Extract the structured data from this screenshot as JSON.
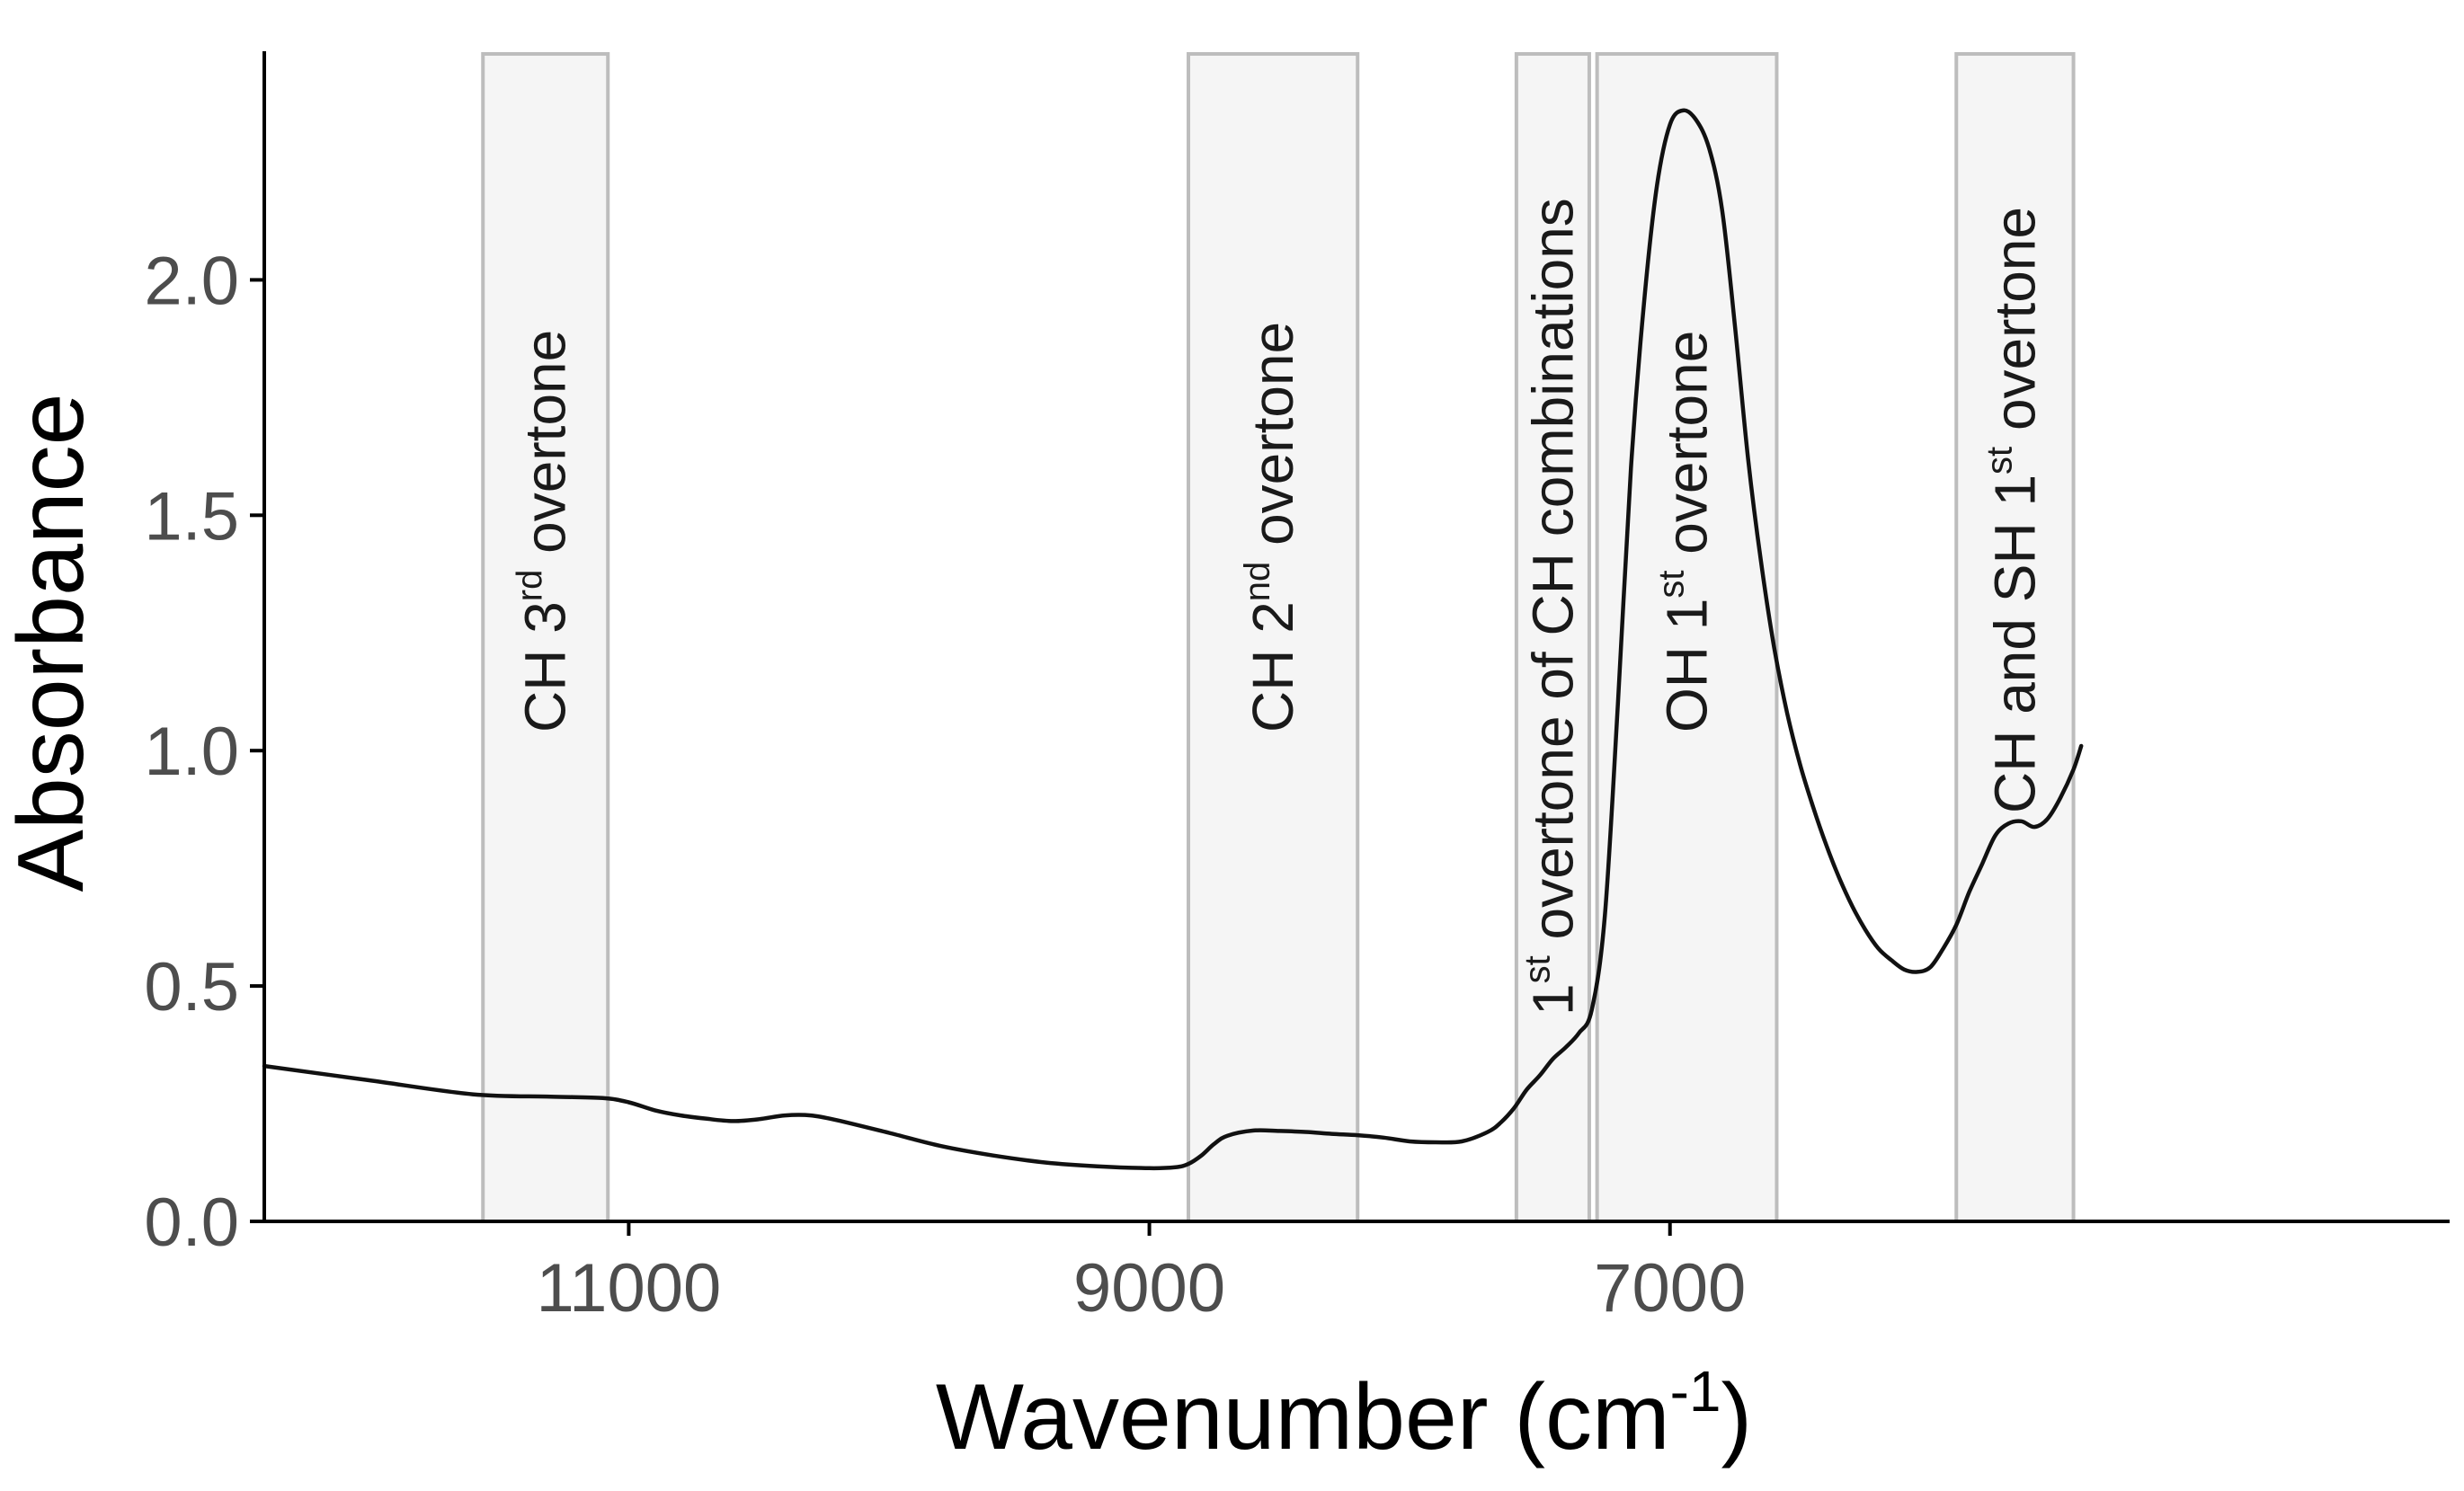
{
  "chart_data": {
    "type": "line",
    "title": "",
    "xlabel": "Wavenumber (cm",
    "xlabel_sup": "-1",
    "xlabel_close": ")",
    "ylabel": "Absorbance",
    "x_reversed": true,
    "xlim": [
      12400,
      4005
    ],
    "ylim": [
      0,
      2.48
    ],
    "grid": false,
    "legend": "none",
    "x_ticks": [
      11000,
      9000,
      7000
    ],
    "x_tick_labels": [
      "11000",
      "9000",
      "7000"
    ],
    "y_ticks": [
      0,
      0.5,
      1,
      1.5,
      2
    ],
    "y_tick_labels": [
      "0.0",
      "0.5",
      "1.0",
      "1.5",
      "2.0"
    ],
    "colors": {
      "line": "#111111",
      "band_fill": "#f5f5f5",
      "band_stroke": "#bdbdbd",
      "axis": "#000000",
      "tick_text": "#4d4d4d"
    },
    "bands": [
      {
        "from": 11560,
        "to": 11080,
        "label_parts": [
          {
            "t": "CH 3"
          },
          {
            "t": "rd",
            "sup": true
          },
          {
            "t": " overtone"
          }
        ]
      },
      {
        "from": 8850,
        "to": 8200,
        "label_parts": [
          {
            "t": "CH 2"
          },
          {
            "t": "nd",
            "sup": true
          },
          {
            "t": " overtone"
          }
        ]
      },
      {
        "from": 7590,
        "to": 7310,
        "label_parts": [
          {
            "t": "1"
          },
          {
            "t": "st",
            "sup": true
          },
          {
            "t": " overtone of CH combinations"
          }
        ]
      },
      {
        "from": 7280,
        "to": 6590,
        "label_parts": [
          {
            "t": "OH 1"
          },
          {
            "t": "st",
            "sup": true
          },
          {
            "t": " overtone"
          }
        ]
      },
      {
        "from": 5900,
        "to": 5450,
        "label_parts": [
          {
            "t": "CH and SH 1"
          },
          {
            "t": "st",
            "sup": true
          },
          {
            "t": " overtone"
          }
        ]
      }
    ],
    "series": [
      {
        "x": [
          12400,
          12000,
          11600,
          11300,
          11100,
          11000,
          10900,
          10800,
          10700,
          10600,
          10500,
          10400,
          10300,
          10200,
          10000,
          9800,
          9600,
          9400,
          9200,
          9000,
          8900,
          8850,
          8800,
          8750,
          8700,
          8600,
          8500,
          8400,
          8300,
          8200,
          8100,
          8000,
          7900,
          7800,
          7700,
          7650,
          7600,
          7550,
          7500,
          7450,
          7400,
          7350,
          7300,
          7250,
          7200,
          7150,
          7100,
          7050,
          7000,
          6950,
          6900,
          6850,
          6800,
          6750,
          6700,
          6650,
          6600,
          6550,
          6500,
          6450,
          6400,
          6350,
          6300,
          6250,
          6200,
          6150,
          6100,
          6050,
          6000,
          5950,
          5900,
          5850,
          5800,
          5750,
          5700,
          5650,
          5600,
          5550,
          5500,
          5450,
          5420
        ],
        "y": [
          0.33,
          0.3,
          0.27,
          0.265,
          0.262,
          0.253,
          0.236,
          0.225,
          0.218,
          0.213,
          0.217,
          0.225,
          0.225,
          0.215,
          0.188,
          0.16,
          0.14,
          0.125,
          0.117,
          0.113,
          0.115,
          0.122,
          0.14,
          0.165,
          0.182,
          0.193,
          0.192,
          0.19,
          0.186,
          0.183,
          0.178,
          0.17,
          0.168,
          0.17,
          0.19,
          0.21,
          0.24,
          0.28,
          0.31,
          0.345,
          0.37,
          0.4,
          0.45,
          0.65,
          1.1,
          1.6,
          1.95,
          2.2,
          2.33,
          2.36,
          2.34,
          2.28,
          2.15,
          1.9,
          1.62,
          1.4,
          1.22,
          1.08,
          0.97,
          0.88,
          0.8,
          0.73,
          0.67,
          0.62,
          0.58,
          0.555,
          0.535,
          0.53,
          0.54,
          0.58,
          0.63,
          0.7,
          0.76,
          0.82,
          0.845,
          0.85,
          0.838,
          0.855,
          0.9,
          0.96,
          1.01
        ]
      }
    ]
  }
}
